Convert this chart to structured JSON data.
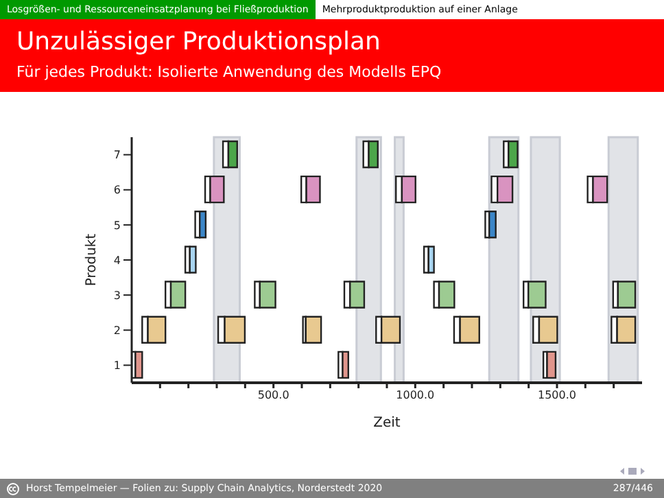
{
  "chart_data": {
    "type": "bar",
    "orientation": "horizontal",
    "title": "Unzulässiger Produktionsplan",
    "subtitle": "Für jedes Produkt: Isolierte Anwendung des Modells EPQ",
    "xlabel": "Zeit",
    "ylabel": "Produkt",
    "categories": [
      "7",
      "6",
      "5",
      "4",
      "3",
      "2",
      "1"
    ],
    "series": [
      {
        "color": "#ffffff",
        "base": [
          322,
          259,
          224,
          189,
          119,
          37,
          0
        ],
        "values": [
          19,
          18,
          16,
          16,
          19,
          20,
          13
        ]
      },
      {
        "colors": [
          "#4ca64a",
          "#d993c0",
          "#3b86c8",
          "#a8d4f0",
          "#9dcb92",
          "#e8c990",
          "#e0958c"
        ],
        "base": [
          341,
          277,
          240,
          205,
          138,
          57,
          13
        ],
        "values": [
          31,
          48,
          21,
          21,
          51,
          62,
          24
        ]
      },
      {
        "color": "#ffffff",
        "base": [
          817,
          598,
          1247,
          1031,
          434,
          305,
          729
        ],
        "values": [
          19,
          18,
          14,
          16,
          18,
          23,
          15
        ]
      },
      {
        "colors": [
          "#4ca64a",
          "#d993c0",
          "#3b86c8",
          "#a8d4f0",
          "#9dcb92",
          "#e8c990",
          "#e0958c"
        ],
        "base": [
          836,
          616,
          1261,
          1047,
          452,
          328,
          744
        ],
        "values": [
          32,
          48,
          23,
          19,
          55,
          71,
          20
        ]
      },
      {
        "color": "#ffffff",
        "base": [
          1312,
          932,
          null,
          null,
          750,
          604,
          1452
        ],
        "values": [
          17,
          21,
          null,
          null,
          20,
          10,
          13
        ]
      },
      {
        "colors": [
          "#4ca64a",
          "#d993c0",
          "#3b86c8",
          "#a8d4f0",
          "#9dcb92",
          "#e8c990",
          "#e0958c"
        ],
        "base": [
          1329,
          953,
          null,
          null,
          770,
          614,
          1465
        ],
        "values": [
          32,
          48,
          null,
          null,
          50,
          54,
          30
        ]
      },
      {
        "color": "#ffffff",
        "base": [
          null,
          1269,
          null,
          null,
          1066,
          862,
          null
        ],
        "values": [
          null,
          21,
          null,
          null,
          18,
          19,
          null
        ]
      },
      {
        "colors": [
          "#4ca64a",
          "#d993c0",
          "#3b86c8",
          "#a8d4f0",
          "#9dcb92",
          "#e8c990",
          "#e0958c"
        ],
        "base": [
          null,
          1290,
          null,
          null,
          1084,
          881,
          null
        ],
        "values": [
          null,
          53,
          null,
          null,
          54,
          65,
          null
        ]
      },
      {
        "color": "#ffffff",
        "base": [
          null,
          1608,
          null,
          null,
          1382,
          1137,
          null
        ],
        "values": [
          null,
          19,
          null,
          null,
          17,
          21,
          null
        ]
      },
      {
        "colors": [
          "#4ca64a",
          "#d993c0",
          "#3b86c8",
          "#a8d4f0",
          "#9dcb92",
          "#e8c990",
          "#e0958c"
        ],
        "base": [
          null,
          1627,
          null,
          null,
          1399,
          1158,
          null
        ],
        "values": [
          null,
          50,
          null,
          null,
          61,
          68,
          null
        ]
      },
      {
        "color": "#ffffff",
        "base": [
          null,
          null,
          null,
          null,
          1698,
          1416,
          null
        ],
        "values": [
          null,
          null,
          null,
          null,
          17,
          21,
          null
        ]
      },
      {
        "colors": [
          "#4ca64a",
          "#d993c0",
          "#3b86c8",
          "#a8d4f0",
          "#9dcb92",
          "#e8c990",
          "#e0958c"
        ],
        "base": [
          null,
          null,
          null,
          null,
          1715,
          1437,
          null
        ],
        "values": [
          null,
          null,
          null,
          null,
          61,
          64,
          null
        ]
      },
      {
        "color": "#ffffff",
        "base": [
          null,
          null,
          null,
          null,
          null,
          1692,
          null
        ],
        "values": [
          null,
          null,
          null,
          null,
          null,
          20,
          null
        ]
      },
      {
        "colors": [
          "#4ca64a",
          "#d993c0",
          "#3b86c8",
          "#a8d4f0",
          "#9dcb92",
          "#e8c990",
          "#e0958c"
        ],
        "base": [
          null,
          null,
          null,
          null,
          null,
          1712,
          null
        ],
        "values": [
          null,
          null,
          null,
          null,
          null,
          64,
          null
        ]
      }
    ],
    "xlim": [
      0,
      1800
    ],
    "xticks": [
      {
        "value": 100,
        "label": null
      },
      {
        "value": 200,
        "label": null
      },
      {
        "value": 300,
        "label": null
      },
      {
        "value": 400,
        "label": null
      },
      {
        "value": 500,
        "label": "500.0"
      },
      {
        "value": 600,
        "label": null
      },
      {
        "value": 700,
        "label": null
      },
      {
        "value": 800,
        "label": null
      },
      {
        "value": 900,
        "label": null
      },
      {
        "value": 1000,
        "label": "1000.0"
      },
      {
        "value": 1100,
        "label": null
      },
      {
        "value": 1200,
        "label": null
      },
      {
        "value": 1300,
        "label": null
      },
      {
        "value": 1400,
        "label": null
      },
      {
        "value": 1500,
        "label": "1500.0"
      },
      {
        "value": 1600,
        "label": null
      },
      {
        "value": 1700,
        "label": null
      }
    ],
    "bands": [
      {
        "axis": "x",
        "from": 290,
        "to": 381,
        "color": "#c9ccd4"
      },
      {
        "axis": "x",
        "from": 793,
        "to": 879,
        "color": "#c9ccd4"
      },
      {
        "axis": "x",
        "from": 928,
        "to": 959,
        "color": "#c9ccd4"
      },
      {
        "axis": "x",
        "from": 1261,
        "to": 1364,
        "color": "#c9ccd4"
      },
      {
        "axis": "x",
        "from": 1408,
        "to": 1510,
        "color": "#c9ccd4"
      },
      {
        "axis": "x",
        "from": 1682,
        "to": 1785,
        "color": "#c9ccd4"
      }
    ],
    "annotations": [
      "Losgrößen- und Ressourceneinsatzplanung bei Fließproduktion",
      "Mehrproduktproduktion auf einer Anlage",
      "Horst Tempelmeier — Folien zu: Supply Chain Analytics, Norderstedt 2020",
      "287/446"
    ]
  }
}
